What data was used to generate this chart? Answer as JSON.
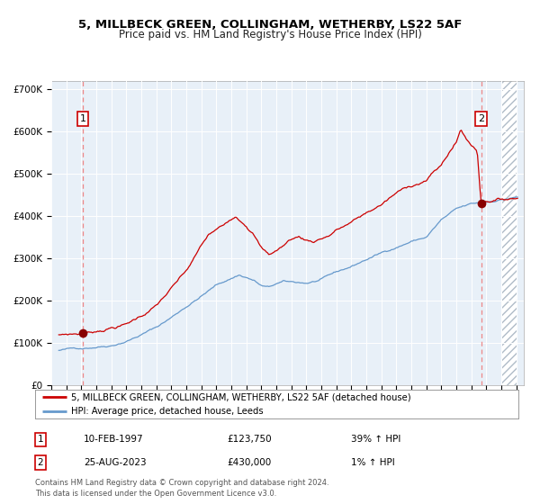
{
  "title1": "5, MILLBECK GREEN, COLLINGHAM, WETHERBY, LS22 5AF",
  "title2": "Price paid vs. HM Land Registry's House Price Index (HPI)",
  "sale1_date_num": 1997.11,
  "sale1_price": 123750,
  "sale2_date_num": 2023.65,
  "sale2_price": 430000,
  "legend_line1": "5, MILLBECK GREEN, COLLINGHAM, WETHERBY, LS22 5AF (detached house)",
  "legend_line2": "HPI: Average price, detached house, Leeds",
  "table_row1": [
    "1",
    "10-FEB-1997",
    "£123,750",
    "39% ↑ HPI"
  ],
  "table_row2": [
    "2",
    "25-AUG-2023",
    "£430,000",
    "1% ↑ HPI"
  ],
  "footnote": "Contains HM Land Registry data © Crown copyright and database right 2024.\nThis data is licensed under the Open Government Licence v3.0.",
  "xmin": 1995.5,
  "xmax": 2026.5,
  "ymin": 0,
  "ymax": 720000,
  "plot_bg": "#e8f0f8",
  "line_color_red": "#cc0000",
  "line_color_blue": "#6699cc",
  "marker_color": "#880000",
  "vline_color": "#ee8888",
  "hatch_color": "#b0bcc8",
  "hatch_start": 2025.0,
  "title_fontsize": 9.5,
  "subtitle_fontsize": 8.5
}
